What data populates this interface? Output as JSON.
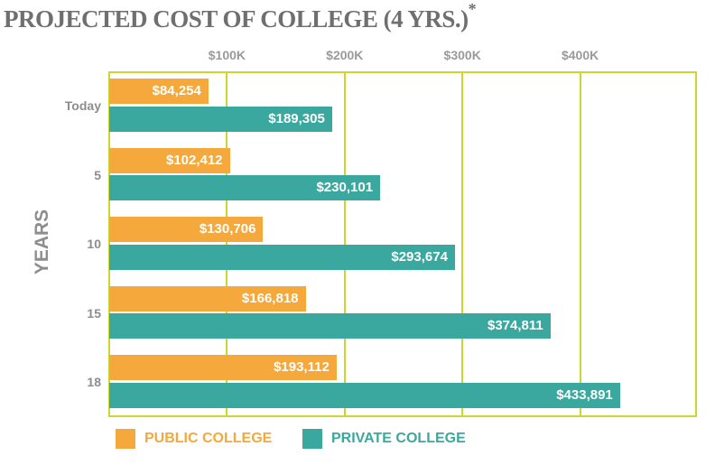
{
  "chart_data": {
    "type": "bar",
    "orientation": "horizontal",
    "title": "PROJECTED COST OF COLLEGE (4 YRS.)",
    "title_mark": "*",
    "ylabel": "YEARS",
    "xlabel": "",
    "categories": [
      "Today",
      "5",
      "10",
      "15",
      "18"
    ],
    "xticks": [
      100000,
      200000,
      300000,
      400000
    ],
    "xtick_labels": [
      "$100K",
      "$200K",
      "$300K",
      "$400K"
    ],
    "xlim": [
      0,
      500000
    ],
    "grid": true,
    "legend_position": "bottom-left",
    "series": [
      {
        "name": "PUBLIC COLLEGE",
        "color": "#f5a83b",
        "values": [
          84254,
          102412,
          130706,
          166818,
          193112
        ],
        "labels": [
          "$84,254",
          "$102,412",
          "$130,706",
          "$166,818",
          "$193,112"
        ]
      },
      {
        "name": "PRIVATE COLLEGE",
        "color": "#3aa89f",
        "values": [
          189305,
          230101,
          293674,
          374811,
          433891
        ],
        "labels": [
          "$189,305",
          "$230,101",
          "$293,674",
          "$374,811",
          "$433,891"
        ]
      }
    ]
  }
}
